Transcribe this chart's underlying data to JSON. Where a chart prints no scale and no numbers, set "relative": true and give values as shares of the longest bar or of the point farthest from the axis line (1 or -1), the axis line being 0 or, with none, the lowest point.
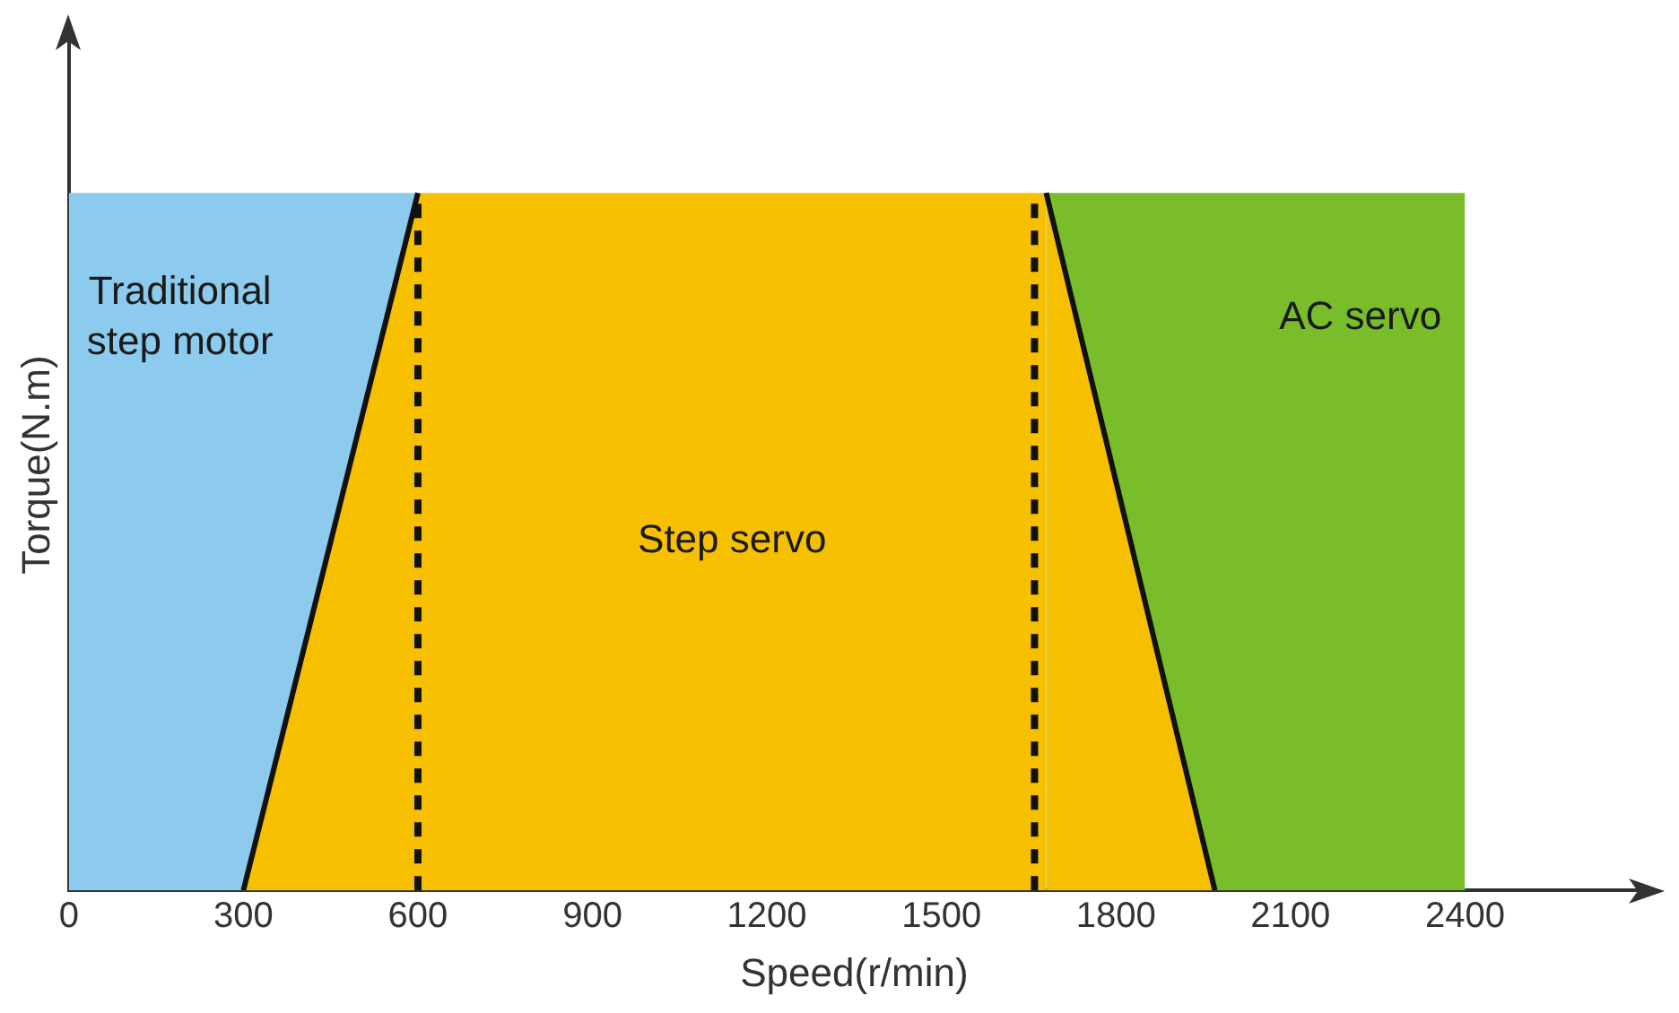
{
  "chart_data": {
    "type": "area",
    "relative": true,
    "xlabel": "Speed(r/min)",
    "ylabel": "Torque(N.m)",
    "xlim": [
      0,
      2700
    ],
    "xticks": [
      0,
      300,
      600,
      900,
      1200,
      1500,
      1800,
      2100,
      2400
    ],
    "grid": false,
    "legend": false,
    "series": [
      {
        "name": "Step servo",
        "color": "#f6c000",
        "x": [
          300,
          600,
          1680,
          1970
        ],
        "values": [
          0,
          1,
          1,
          0
        ]
      },
      {
        "name": "Traditional step motor",
        "color": "#8ccbee",
        "x": [
          0,
          600
        ],
        "values": [
          1,
          1
        ]
      },
      {
        "name": "AC servo",
        "color": "#79bd2a",
        "x": [
          1680,
          2400
        ],
        "values": [
          1,
          1
        ]
      }
    ],
    "ref_lines": [
      {
        "axis": "x",
        "value": 600,
        "line_style": "dotted"
      },
      {
        "axis": "x",
        "value": 1660,
        "line_style": "dotted"
      }
    ]
  }
}
